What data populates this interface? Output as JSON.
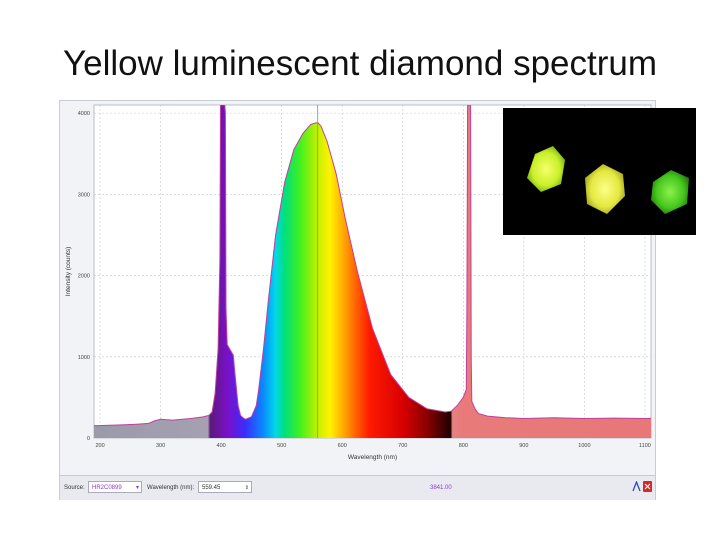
{
  "slide": {
    "title": "Yellow luminescent diamond spectrum"
  },
  "chart_data": {
    "type": "line",
    "title": "",
    "xlabel": "Wavelength (nm)",
    "ylabel": "Intensity (counts)",
    "xlim": [
      190,
      1110
    ],
    "ylim": [
      0,
      4100
    ],
    "x_ticks": [
      200,
      300,
      400,
      500,
      600,
      700,
      800,
      900,
      1000,
      1100
    ],
    "y_ticks": [
      0,
      1000,
      2000,
      3000,
      4000
    ],
    "grid": true,
    "fill": "wavelength rainbow under curve",
    "line_color": "#c0409c",
    "series": [
      {
        "x": [
          190,
          230,
          260,
          280,
          290,
          300,
          320,
          350,
          370,
          380,
          385,
          390,
          395,
          398,
          399,
          400,
          406,
          407,
          408,
          410,
          420,
          422,
          428,
          432,
          436,
          440,
          450,
          458,
          462,
          470,
          478,
          490,
          505,
          520,
          535,
          548,
          556,
          560,
          565,
          575,
          590,
          605,
          625,
          650,
          680,
          710,
          740,
          770,
          780,
          790,
          800,
          805,
          806,
          807,
          812,
          813,
          814,
          820,
          825,
          840,
          870,
          900,
          950,
          1000,
          1050,
          1110
        ],
        "y": [
          150,
          160,
          170,
          180,
          210,
          230,
          220,
          240,
          260,
          280,
          320,
          550,
          1100,
          2200,
          4100,
          4100,
          4100,
          4000,
          1600,
          1150,
          1020,
          850,
          400,
          280,
          250,
          230,
          260,
          400,
          600,
          1100,
          1700,
          2500,
          3150,
          3550,
          3750,
          3860,
          3880,
          3880,
          3840,
          3650,
          3250,
          2700,
          2050,
          1350,
          780,
          500,
          360,
          320,
          330,
          400,
          500,
          600,
          1600,
          4100,
          4100,
          1000,
          450,
          350,
          300,
          270,
          250,
          240,
          250,
          240,
          245,
          240
        ]
      }
    ]
  },
  "status_bar": {
    "source_label": "Source:",
    "source_value": "HR2C0899",
    "wavelength_label": "Wavelength (nm):",
    "wavelength_value": "559.45",
    "readout": "3841.00"
  },
  "inset": {
    "stones": [
      "yellow-green",
      "yellow",
      "green"
    ]
  }
}
